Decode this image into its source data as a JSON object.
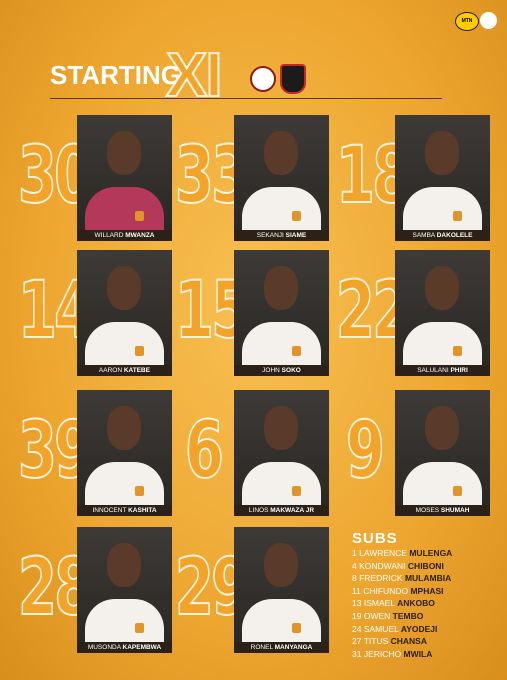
{
  "header": {
    "title_a": "STARTING",
    "title_b": "XI",
    "sponsor": "MTN"
  },
  "players": [
    {
      "number": 30,
      "first": "WILLARD",
      "last": "MWANZA"
    },
    {
      "number": 33,
      "first": "SEKANJI",
      "last": "SIAME"
    },
    {
      "number": 18,
      "first": "SAMBA",
      "last": "DAKOLELE"
    },
    {
      "number": 14,
      "first": "AARON",
      "last": "KATEBE"
    },
    {
      "number": 15,
      "first": "JOHN",
      "last": "SOKO"
    },
    {
      "number": 22,
      "first": "SALULANI",
      "last": "PHIRI"
    },
    {
      "number": 39,
      "first": "INNOCENT",
      "last": "KASHITA"
    },
    {
      "number": 6,
      "first": "LINOS",
      "last": "MAKWAZA JR"
    },
    {
      "number": 9,
      "first": "MOSES",
      "last": "SHUMAH"
    },
    {
      "number": 28,
      "first": "MUSONDA",
      "last": "KAPEMBWA"
    },
    {
      "number": 29,
      "first": "RONEL",
      "last": "MANYANGA"
    }
  ],
  "subs": {
    "title": "SUBS",
    "list": [
      {
        "number": 1,
        "first": "LAWRENCE",
        "last": "MULENGA"
      },
      {
        "number": 4,
        "first": "KONDWANI",
        "last": "CHIBONI"
      },
      {
        "number": 8,
        "first": "FREDRICK",
        "last": "MULAMBIA"
      },
      {
        "number": 11,
        "first": "CHIFUNDO",
        "last": "MPHASI"
      },
      {
        "number": 13,
        "first": "ISMAEL",
        "last": "ANKOBO"
      },
      {
        "number": 19,
        "first": "OWEN",
        "last": "TEMBO"
      },
      {
        "number": 24,
        "first": "SAMUEL",
        "last": "AYODEJI"
      },
      {
        "number": 27,
        "first": "TITUS",
        "last": "CHANSA"
      },
      {
        "number": 31,
        "first": "JERICHO",
        "last": "MWILA"
      }
    ]
  }
}
